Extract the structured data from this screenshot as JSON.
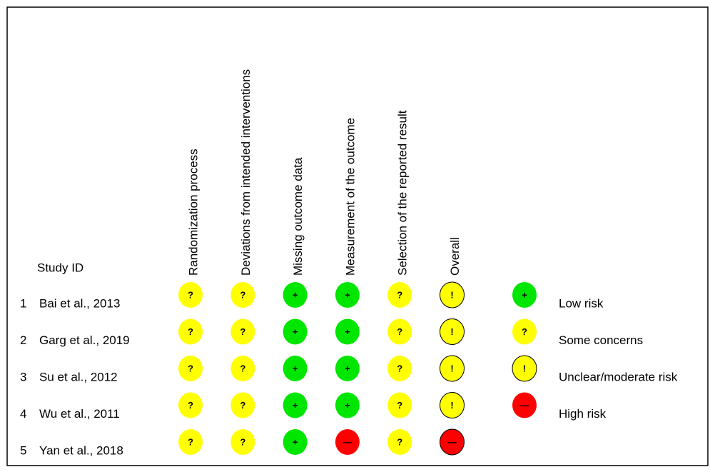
{
  "header": {
    "study_id": "Study ID"
  },
  "columns": [
    "Randomization process",
    "Deviations from intended interventions",
    "Missing outcome data",
    "Measurement of the outcome",
    "Selection of the reported result",
    "Overall"
  ],
  "rows": [
    {
      "number": "1",
      "study": "Bai et al., 2013",
      "judgments": [
        "?",
        "?",
        "+",
        "+",
        "?",
        "!"
      ]
    },
    {
      "number": "2",
      "study": "Garg et al., 2019",
      "judgments": [
        "?",
        "?",
        "+",
        "+",
        "?",
        "!"
      ]
    },
    {
      "number": "3",
      "study": "Su et al., 2012",
      "judgments": [
        "?",
        "?",
        "+",
        "+",
        "?",
        "!"
      ]
    },
    {
      "number": "4",
      "study": "Wu et al., 2011",
      "judgments": [
        "?",
        "?",
        "+",
        "+",
        "?",
        "!"
      ]
    },
    {
      "number": "5",
      "study": "Yan et al., 2018",
      "judgments": [
        "?",
        "?",
        "+",
        "—",
        "?",
        "—"
      ]
    }
  ],
  "legend": [
    {
      "symbol": "+",
      "label": "Low risk",
      "color": "#00e600"
    },
    {
      "symbol": "?",
      "label": "Some concerns",
      "color": "#ffff00"
    },
    {
      "symbol": "!",
      "label": "Unclear/moderate risk",
      "color": "#ffff00"
    },
    {
      "symbol": "—",
      "label": "High risk",
      "color": "#ff0000"
    }
  ]
}
